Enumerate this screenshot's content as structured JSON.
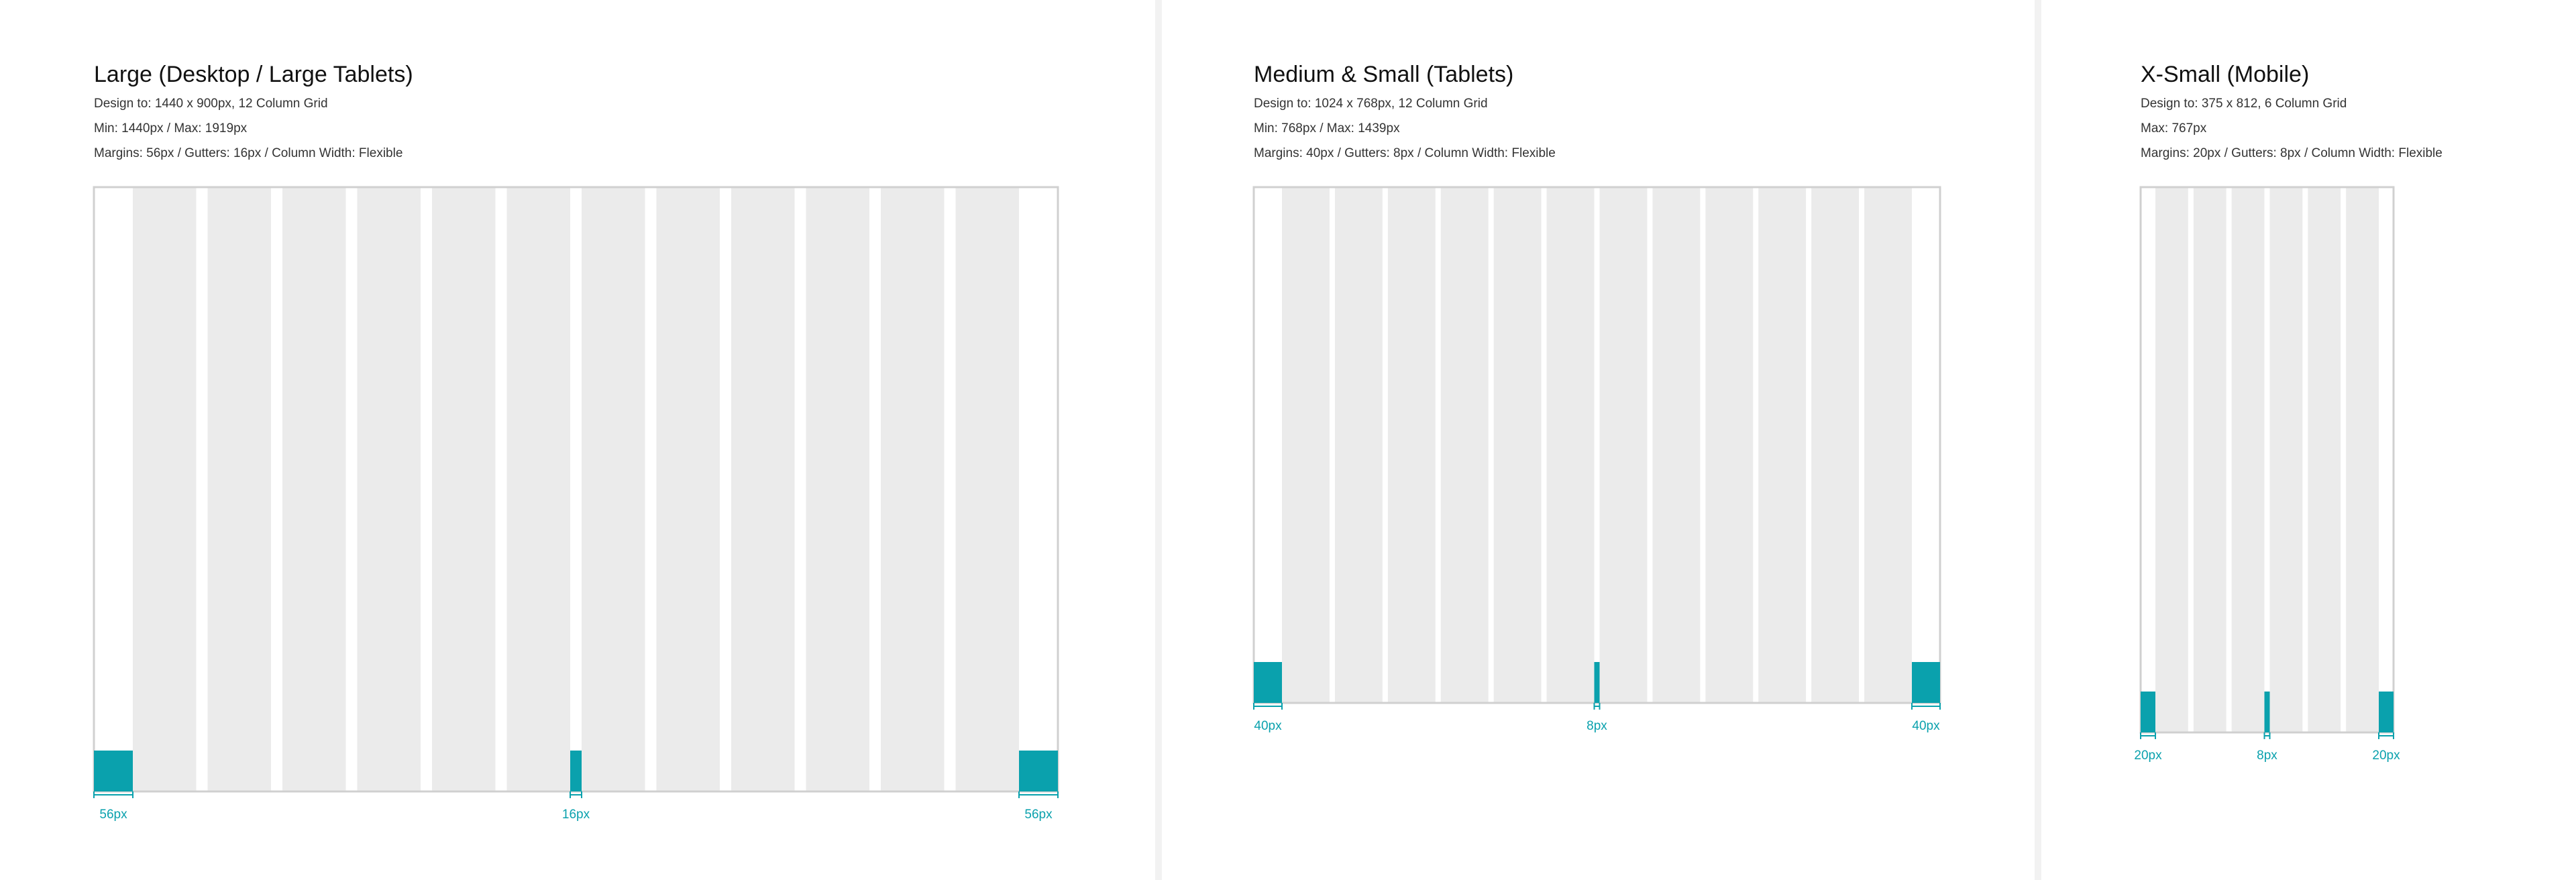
{
  "panels": [
    {
      "title": "Large (Desktop / Large Tablets)",
      "lines": [
        "Design to: 1440 x 900px, 12 Column Grid",
        "Min: 1440px / Max: 1919px",
        "Margins: 56px  /  Gutters: 16px  /  Column Width: Flexible"
      ],
      "labels": [
        "56px",
        "16px",
        "56px"
      ]
    },
    {
      "title": "Medium & Small (Tablets)",
      "lines": [
        "Design to: 1024 x 768px, 12 Column Grid",
        "Min: 768px / Max: 1439px",
        "Margins: 40px  /  Gutters: 8px  /  Column Width: Flexible"
      ],
      "labels": [
        "40px",
        "8px",
        "40px"
      ]
    },
    {
      "title": "X-Small (Mobile)",
      "lines": [
        "Design to: 375 x 812, 6 Column Grid",
        "Max: 767px",
        "Margins: 20px  /  Gutters: 8px  /  Column Width: Flexible"
      ],
      "labels": [
        "20px",
        "8px",
        "20px"
      ]
    }
  ]
}
